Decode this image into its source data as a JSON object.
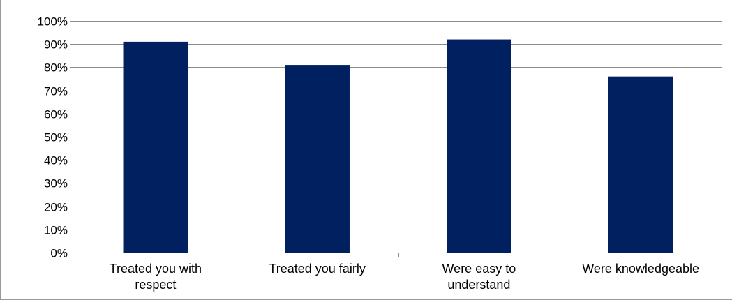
{
  "chart_data": {
    "type": "bar",
    "categories": [
      [
        "Treated you with",
        "respect"
      ],
      [
        "Treated you fairly"
      ],
      [
        "Were easy to",
        "understand"
      ],
      [
        "Were knowledgeable"
      ]
    ],
    "values": [
      91,
      81,
      92,
      76
    ],
    "ylim": [
      0,
      100
    ],
    "yticks": [
      "0%",
      "10%",
      "20%",
      "30%",
      "40%",
      "50%",
      "60%",
      "70%",
      "80%",
      "90%",
      "100%"
    ],
    "grid": true,
    "legend": "none",
    "title": "",
    "xlabel": "",
    "ylabel": "",
    "colors": {
      "bar": "#002060",
      "grid": "#8c8c8c",
      "axis": "#8c8c8c"
    }
  }
}
